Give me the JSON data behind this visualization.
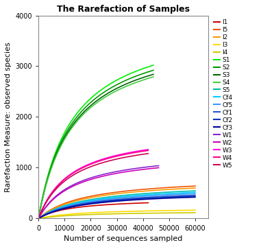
{
  "title": "The Rarefaction of Samples",
  "xlabel": "Number of sequences sampled",
  "ylabel": "Rarefaction Measure: observed species",
  "xlim": [
    0,
    65000
  ],
  "ylim": [
    0,
    4000
  ],
  "xticks": [
    0,
    10000,
    20000,
    30000,
    40000,
    50000,
    60000
  ],
  "yticks": [
    0,
    1000,
    2000,
    3000,
    4000
  ],
  "series": [
    {
      "label": "I1",
      "color": "#CC0000",
      "x_end": 42000,
      "y_end": 310,
      "Vmax_factor": 1.3
    },
    {
      "label": "I5",
      "color": "#EE5500",
      "x_end": 60000,
      "y_end": 640,
      "Vmax_factor": 1.3
    },
    {
      "label": "I2",
      "color": "#FF9900",
      "x_end": 60000,
      "y_end": 600,
      "Vmax_factor": 1.3
    },
    {
      "label": "I3",
      "color": "#FFDD00",
      "x_end": 60000,
      "y_end": 165,
      "Vmax_factor": 1.3
    },
    {
      "label": "I4",
      "color": "#CCCC00",
      "x_end": 60000,
      "y_end": 115,
      "Vmax_factor": 1.3
    },
    {
      "label": "S1",
      "color": "#00EE00",
      "x_end": 44000,
      "y_end": 3020,
      "Vmax_factor": 1.3
    },
    {
      "label": "S2",
      "color": "#009900",
      "x_end": 44000,
      "y_end": 2920,
      "Vmax_factor": 1.3
    },
    {
      "label": "S3",
      "color": "#006600",
      "x_end": 44000,
      "y_end": 2840,
      "Vmax_factor": 1.3
    },
    {
      "label": "S4",
      "color": "#44CC44",
      "x_end": 44000,
      "y_end": 2790,
      "Vmax_factor": 1.3
    },
    {
      "label": "S5",
      "color": "#00BBAA",
      "x_end": 60000,
      "y_end": 545,
      "Vmax_factor": 1.3
    },
    {
      "label": "Cf4",
      "color": "#00CCFF",
      "x_end": 60000,
      "y_end": 515,
      "Vmax_factor": 1.3
    },
    {
      "label": "Cf5",
      "color": "#3399FF",
      "x_end": 60000,
      "y_end": 490,
      "Vmax_factor": 1.3
    },
    {
      "label": "Cf1",
      "color": "#2255CC",
      "x_end": 60000,
      "y_end": 460,
      "Vmax_factor": 1.3
    },
    {
      "label": "Cf2",
      "color": "#0033BB",
      "x_end": 60000,
      "y_end": 440,
      "Vmax_factor": 1.3
    },
    {
      "label": "Cf3",
      "color": "#000099",
      "x_end": 60000,
      "y_end": 420,
      "Vmax_factor": 1.3
    },
    {
      "label": "W1",
      "color": "#8822CC",
      "x_end": 46000,
      "y_end": 1040,
      "Vmax_factor": 1.3
    },
    {
      "label": "W2",
      "color": "#CC00BB",
      "x_end": 46000,
      "y_end": 1000,
      "Vmax_factor": 1.3
    },
    {
      "label": "W3",
      "color": "#FF00DD",
      "x_end": 42000,
      "y_end": 1360,
      "Vmax_factor": 1.3
    },
    {
      "label": "W4",
      "color": "#FF0088",
      "x_end": 42000,
      "y_end": 1340,
      "Vmax_factor": 1.3
    },
    {
      "label": "W5",
      "color": "#CC0055",
      "x_end": 42000,
      "y_end": 1280,
      "Vmax_factor": 1.3
    }
  ],
  "title_fontsize": 9,
  "axis_label_fontsize": 8,
  "tick_fontsize": 7,
  "legend_fontsize": 6.5,
  "linewidth": 1.2,
  "figsize": [
    4.0,
    3.6
  ],
  "dpi": 100
}
